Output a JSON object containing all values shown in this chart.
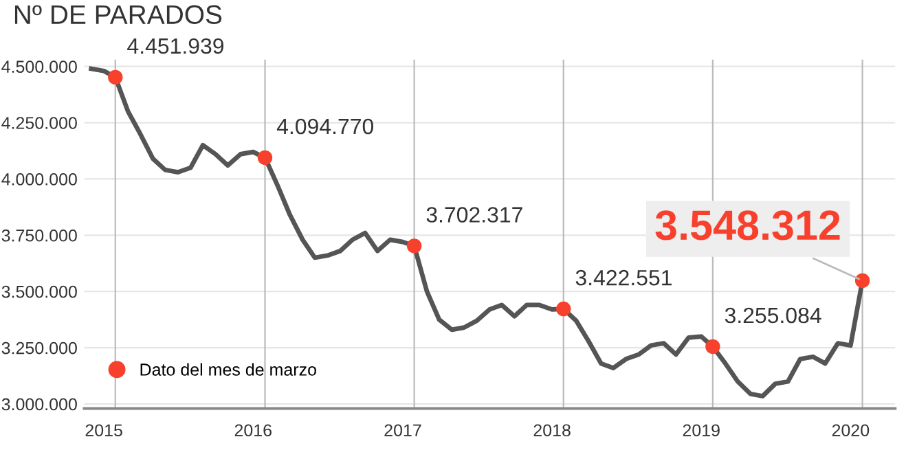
{
  "chart_data": {
    "type": "line",
    "title": "Nº DE PARADOS",
    "x": [
      "2015-01",
      "2015-02",
      "2015-03",
      "2015-04",
      "2015-05",
      "2015-06",
      "2015-07",
      "2015-08",
      "2015-09",
      "2015-10",
      "2015-11",
      "2015-12",
      "2016-01",
      "2016-02",
      "2016-03",
      "2016-04",
      "2016-05",
      "2016-06",
      "2016-07",
      "2016-08",
      "2016-09",
      "2016-10",
      "2016-11",
      "2016-12",
      "2017-01",
      "2017-02",
      "2017-03",
      "2017-04",
      "2017-05",
      "2017-06",
      "2017-07",
      "2017-08",
      "2017-09",
      "2017-10",
      "2017-11",
      "2017-12",
      "2018-01",
      "2018-02",
      "2018-03",
      "2018-04",
      "2018-05",
      "2018-06",
      "2018-07",
      "2018-08",
      "2018-09",
      "2018-10",
      "2018-11",
      "2018-12",
      "2019-01",
      "2019-02",
      "2019-03",
      "2019-04",
      "2019-05",
      "2019-06",
      "2019-07",
      "2019-08",
      "2019-09",
      "2019-10",
      "2019-11",
      "2019-12",
      "2020-01",
      "2020-02",
      "2020-03"
    ],
    "series": [
      {
        "color": "#555555",
        "marker": "none",
        "values": [
          4490000,
          4480000,
          4451939,
          4300000,
          4200000,
          4090000,
          4040000,
          4030000,
          4050000,
          4150000,
          4110000,
          4060000,
          4110000,
          4120000,
          4094770,
          3970000,
          3840000,
          3730000,
          3650000,
          3660000,
          3680000,
          3730000,
          3760000,
          3680000,
          3730000,
          3720000,
          3702317,
          3500000,
          3375000,
          3330000,
          3340000,
          3370000,
          3420000,
          3440000,
          3390000,
          3440000,
          3440000,
          3420000,
          3422551,
          3370000,
          3280000,
          3180000,
          3160000,
          3200000,
          3220000,
          3260000,
          3270000,
          3220000,
          3295000,
          3300000,
          3255084,
          3180000,
          3100000,
          3045000,
          3035000,
          3090000,
          3100000,
          3200000,
          3210000,
          3180000,
          3270000,
          3260000,
          3548312
        ]
      },
      {
        "type": "scatter",
        "name": "Dato del mes de marzo",
        "color": "#f7412d",
        "marker": "circle",
        "x": [
          "2015-03",
          "2016-03",
          "2017-03",
          "2018-03",
          "2019-03",
          "2020-03"
        ],
        "values": [
          4451939,
          4094770,
          3702317,
          3422551,
          3255084,
          3548312
        ],
        "value_labels": [
          "4.451.939",
          "4.094.770",
          "3.702.317",
          "3.422.551",
          "3.255.084",
          "3.548.312"
        ]
      }
    ],
    "ylim": [
      2980000,
      4530000
    ],
    "yticks": [
      {
        "value": 3000000,
        "label": "3.000.000"
      },
      {
        "value": 3250000,
        "label": "3.250.000"
      },
      {
        "value": 3500000,
        "label": "3.500.000"
      },
      {
        "value": 3750000,
        "label": "3.750.000"
      },
      {
        "value": 4000000,
        "label": "4.000.000"
      },
      {
        "value": 4250000,
        "label": "4.250.000"
      },
      {
        "value": 4500000,
        "label": "4.500.000"
      }
    ],
    "xlim": [
      "2014-12-15",
      "2020-05-20"
    ],
    "xticks": [
      {
        "value": "2015-02",
        "label": "2015"
      },
      {
        "value": "2016-02",
        "label": "2016"
      },
      {
        "value": "2017-02",
        "label": "2017"
      },
      {
        "value": "2018-02",
        "label": "2018"
      },
      {
        "value": "2019-02",
        "label": "2019"
      },
      {
        "value": "2020-02",
        "label": "2020"
      }
    ],
    "ref_lines": [
      {
        "axis": "x",
        "value": "2015-03",
        "color": "#bbbbbb"
      },
      {
        "axis": "x",
        "value": "2016-03",
        "color": "#bbbbbb"
      },
      {
        "axis": "x",
        "value": "2017-03",
        "color": "#bbbbbb"
      },
      {
        "axis": "x",
        "value": "2018-03",
        "color": "#bbbbbb"
      },
      {
        "axis": "x",
        "value": "2019-03",
        "color": "#bbbbbb"
      },
      {
        "axis": "x",
        "value": "2020-03",
        "color": "#bbbbbb"
      }
    ],
    "grid": "y",
    "legend": "bottom left"
  }
}
